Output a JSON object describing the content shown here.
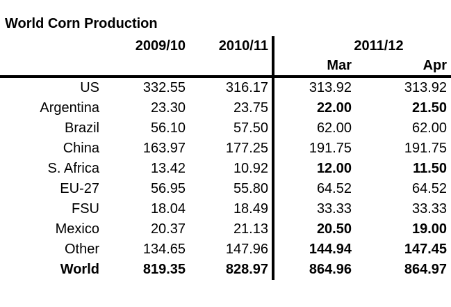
{
  "title": "World Corn Production",
  "colors": {
    "text": "#000000",
    "background": "#ffffff",
    "rules": "#000000"
  },
  "table": {
    "year_headers": [
      "2009/10",
      "2010/11",
      "2011/12"
    ],
    "month_headers": [
      "Mar",
      "Apr"
    ],
    "rows": [
      {
        "label": "US",
        "values": [
          "332.55",
          "316.17",
          "313.92",
          "313.92"
        ],
        "bold_values": [
          false,
          false,
          false,
          false
        ],
        "bold_label": false
      },
      {
        "label": "Argentina",
        "values": [
          "23.30",
          "23.75",
          "22.00",
          "21.50"
        ],
        "bold_values": [
          false,
          false,
          true,
          true
        ],
        "bold_label": false
      },
      {
        "label": "Brazil",
        "values": [
          "56.10",
          "57.50",
          "62.00",
          "62.00"
        ],
        "bold_values": [
          false,
          false,
          false,
          false
        ],
        "bold_label": false
      },
      {
        "label": "China",
        "values": [
          "163.97",
          "177.25",
          "191.75",
          "191.75"
        ],
        "bold_values": [
          false,
          false,
          false,
          false
        ],
        "bold_label": false
      },
      {
        "label": "S. Africa",
        "values": [
          "13.42",
          "10.92",
          "12.00",
          "11.50"
        ],
        "bold_values": [
          false,
          false,
          true,
          true
        ],
        "bold_label": false
      },
      {
        "label": "EU-27",
        "values": [
          "56.95",
          "55.80",
          "64.52",
          "64.52"
        ],
        "bold_values": [
          false,
          false,
          false,
          false
        ],
        "bold_label": false
      },
      {
        "label": "FSU",
        "values": [
          "18.04",
          "18.49",
          "33.33",
          "33.33"
        ],
        "bold_values": [
          false,
          false,
          false,
          false
        ],
        "bold_label": false
      },
      {
        "label": "Mexico",
        "values": [
          "20.37",
          "21.13",
          "20.50",
          "19.00"
        ],
        "bold_values": [
          false,
          false,
          true,
          true
        ],
        "bold_label": false
      },
      {
        "label": "Other",
        "values": [
          "134.65",
          "147.96",
          "144.94",
          "147.45"
        ],
        "bold_values": [
          false,
          false,
          true,
          true
        ],
        "bold_label": false
      },
      {
        "label": "World",
        "values": [
          "819.35",
          "828.97",
          "864.96",
          "864.97"
        ],
        "bold_values": [
          true,
          true,
          true,
          true
        ],
        "bold_label": true
      }
    ]
  },
  "chart_data": {
    "type": "table",
    "title": "World Corn Production",
    "categories": [
      "US",
      "Argentina",
      "Brazil",
      "China",
      "S. Africa",
      "EU-27",
      "FSU",
      "Mexico",
      "Other",
      "World"
    ],
    "series": [
      {
        "name": "2009/10",
        "values": [
          332.55,
          23.3,
          56.1,
          163.97,
          13.42,
          56.95,
          18.04,
          20.37,
          134.65,
          819.35
        ]
      },
      {
        "name": "2010/11",
        "values": [
          316.17,
          23.75,
          57.5,
          177.25,
          10.92,
          55.8,
          18.49,
          21.13,
          147.96,
          828.97
        ]
      },
      {
        "name": "2011/12 Mar",
        "values": [
          313.92,
          22.0,
          62.0,
          191.75,
          12.0,
          64.52,
          33.33,
          20.5,
          144.94,
          864.96
        ]
      },
      {
        "name": "2011/12 Apr",
        "values": [
          313.92,
          21.5,
          62.0,
          191.75,
          11.5,
          64.52,
          33.33,
          19.0,
          147.45,
          864.97
        ]
      }
    ],
    "layout": {
      "header_rule": "thick",
      "vertical_divider_after_column": "2010/11",
      "grid": false
    }
  }
}
